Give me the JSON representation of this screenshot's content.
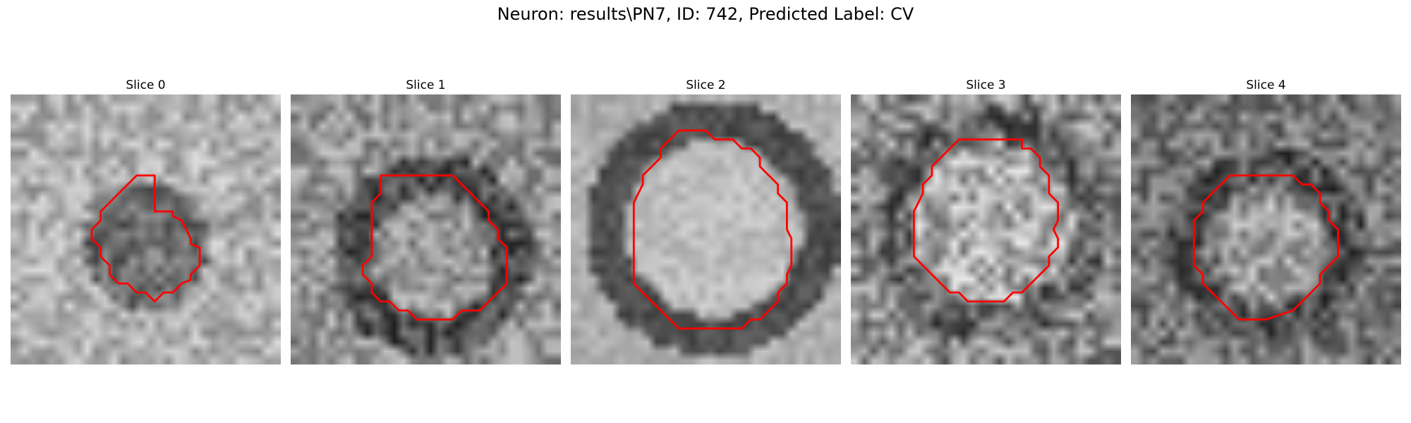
{
  "figure": {
    "title": "Neuron: results\\PN7, ID: 742, Predicted Label: CV"
  },
  "outline_color": "#ff0000",
  "panels": [
    {
      "title": "Slice 0",
      "texture": "scattered-noise",
      "contour": [
        [
          16,
          13
        ],
        [
          18,
          13
        ],
        [
          18,
          13.5
        ],
        [
          19,
          14
        ],
        [
          19.5,
          15
        ],
        [
          20,
          16
        ],
        [
          20,
          16.6
        ],
        [
          21,
          17
        ],
        [
          21,
          19
        ],
        [
          20,
          20
        ],
        [
          20,
          20.6
        ],
        [
          19,
          21
        ],
        [
          18,
          22
        ],
        [
          17,
          22
        ],
        [
          16,
          23
        ],
        [
          15,
          22
        ],
        [
          14,
          22
        ],
        [
          13,
          21
        ],
        [
          12,
          21
        ],
        [
          11,
          20
        ],
        [
          11,
          19
        ],
        [
          10,
          18
        ],
        [
          10,
          17
        ],
        [
          9,
          16
        ],
        [
          9,
          15
        ],
        [
          10,
          14
        ],
        [
          10,
          13
        ],
        [
          11,
          12
        ],
        [
          12,
          11
        ],
        [
          13,
          10
        ],
        [
          14,
          9
        ],
        [
          16,
          9
        ]
      ]
    },
    {
      "title": "Slice 1",
      "texture": "noise-ring",
      "contour": [
        [
          10,
          9
        ],
        [
          18,
          9
        ],
        [
          19,
          10
        ],
        [
          20,
          11
        ],
        [
          21,
          12
        ],
        [
          22,
          13
        ],
        [
          22,
          14
        ],
        [
          23,
          15
        ],
        [
          23,
          16
        ],
        [
          24,
          17
        ],
        [
          24,
          21
        ],
        [
          23,
          22
        ],
        [
          22,
          23
        ],
        [
          21,
          24
        ],
        [
          19,
          24
        ],
        [
          18,
          25
        ],
        [
          17,
          25
        ],
        [
          14,
          25
        ],
        [
          13,
          24
        ],
        [
          12,
          24
        ],
        [
          11,
          23
        ],
        [
          10,
          23
        ],
        [
          9,
          22
        ],
        [
          9,
          21
        ],
        [
          8,
          20
        ],
        [
          8,
          19
        ],
        [
          9,
          18
        ],
        [
          9,
          17
        ],
        [
          9,
          12
        ],
        [
          10,
          11
        ],
        [
          10,
          10
        ]
      ]
    },
    {
      "title": "Slice 2",
      "texture": "smooth-ring",
      "contour": [
        [
          12,
          4
        ],
        [
          15,
          4
        ],
        [
          16,
          5
        ],
        [
          18,
          5
        ],
        [
          19,
          6
        ],
        [
          20,
          6
        ],
        [
          21,
          7
        ],
        [
          21,
          8
        ],
        [
          22,
          9
        ],
        [
          23,
          10
        ],
        [
          23,
          11
        ],
        [
          24,
          12
        ],
        [
          24,
          15
        ],
        [
          24.5,
          16
        ],
        [
          24.5,
          19
        ],
        [
          24,
          20
        ],
        [
          24,
          21
        ],
        [
          23,
          22
        ],
        [
          23,
          23
        ],
        [
          22,
          24
        ],
        [
          21,
          25
        ],
        [
          20,
          25
        ],
        [
          19,
          26
        ],
        [
          18,
          26
        ],
        [
          12,
          26
        ],
        [
          11,
          25
        ],
        [
          10,
          24
        ],
        [
          9,
          23
        ],
        [
          8,
          22
        ],
        [
          7,
          21
        ],
        [
          7,
          19
        ],
        [
          7,
          17
        ],
        [
          7,
          15
        ],
        [
          7,
          12
        ],
        [
          7.5,
          11
        ],
        [
          8,
          10
        ],
        [
          8,
          9
        ],
        [
          9,
          8
        ],
        [
          10,
          7
        ],
        [
          10,
          6
        ],
        [
          11,
          5
        ]
      ]
    },
    {
      "title": "Slice 3",
      "texture": "dark-speckle",
      "contour": [
        [
          12,
          5
        ],
        [
          19,
          5
        ],
        [
          19,
          6
        ],
        [
          20,
          6
        ],
        [
          21,
          7
        ],
        [
          21,
          8
        ],
        [
          22,
          9
        ],
        [
          22,
          10
        ],
        [
          22,
          11
        ],
        [
          23,
          12
        ],
        [
          23,
          14
        ],
        [
          22.5,
          15
        ],
        [
          23,
          16
        ],
        [
          23,
          17
        ],
        [
          22,
          18
        ],
        [
          22,
          19
        ],
        [
          21,
          20
        ],
        [
          20,
          21
        ],
        [
          19,
          22
        ],
        [
          18,
          22
        ],
        [
          17,
          23
        ],
        [
          16,
          23
        ],
        [
          13,
          23
        ],
        [
          12,
          22
        ],
        [
          11,
          22
        ],
        [
          10,
          21
        ],
        [
          9,
          20
        ],
        [
          8,
          19
        ],
        [
          7,
          18
        ],
        [
          7,
          16
        ],
        [
          7,
          13
        ],
        [
          7.5,
          12
        ],
        [
          8,
          11
        ],
        [
          8,
          10
        ],
        [
          9,
          9
        ],
        [
          9,
          8
        ],
        [
          10,
          7
        ],
        [
          11,
          6
        ]
      ]
    },
    {
      "title": "Slice 4",
      "texture": "noise-dark-ring",
      "contour": [
        [
          11,
          9
        ],
        [
          18,
          9
        ],
        [
          19,
          10
        ],
        [
          20,
          10
        ],
        [
          21,
          11
        ],
        [
          21,
          12
        ],
        [
          22,
          13
        ],
        [
          22,
          14
        ],
        [
          23,
          15
        ],
        [
          23,
          18
        ],
        [
          22,
          19
        ],
        [
          21,
          20
        ],
        [
          21,
          21
        ],
        [
          20,
          22
        ],
        [
          19,
          23
        ],
        [
          18,
          24
        ],
        [
          15,
          25
        ],
        [
          12,
          25
        ],
        [
          11,
          24
        ],
        [
          10,
          23
        ],
        [
          9,
          22
        ],
        [
          8,
          21
        ],
        [
          8,
          20
        ],
        [
          7,
          19
        ],
        [
          7,
          14
        ],
        [
          8,
          13
        ],
        [
          8,
          12
        ],
        [
          9,
          11
        ],
        [
          10,
          10
        ]
      ]
    }
  ]
}
